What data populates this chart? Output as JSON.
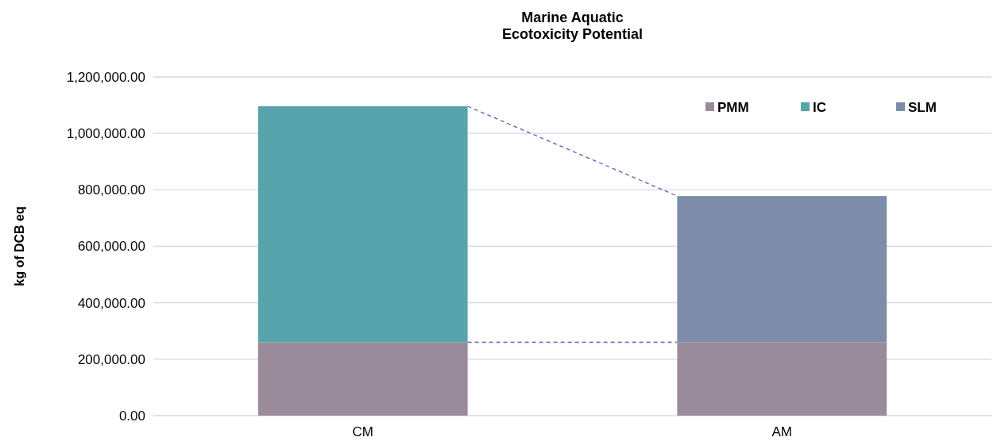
{
  "chart_data": {
    "type": "bar",
    "title": "Marine Aquatic\nEcotoxicity Potential",
    "ylabel": "kg of DCB eq",
    "categories": [
      "CM",
      "AM"
    ],
    "stacked": true,
    "series": [
      {
        "name": "PMM",
        "color": "#9a8b9a",
        "values": [
          260000,
          260000
        ]
      },
      {
        "name": "IC",
        "color": "#57a4ad",
        "values": [
          836000,
          null
        ]
      },
      {
        "name": "SLM",
        "color": "#7d8ca8",
        "values": [
          null,
          518000
        ]
      }
    ],
    "ylim": [
      0,
      1200000
    ],
    "yticks": [
      {
        "value": 0,
        "label": "0.00"
      },
      {
        "value": 200000,
        "label": "200,000.00"
      },
      {
        "value": 400000,
        "label": "400,000.00"
      },
      {
        "value": 600000,
        "label": "600,000.00"
      },
      {
        "value": 800000,
        "label": "800,000.00"
      },
      {
        "value": 1000000,
        "label": "1,000,000.00"
      },
      {
        "value": 1200000,
        "label": "1,200,000.00"
      }
    ],
    "grid": "y",
    "legend": "top right"
  }
}
